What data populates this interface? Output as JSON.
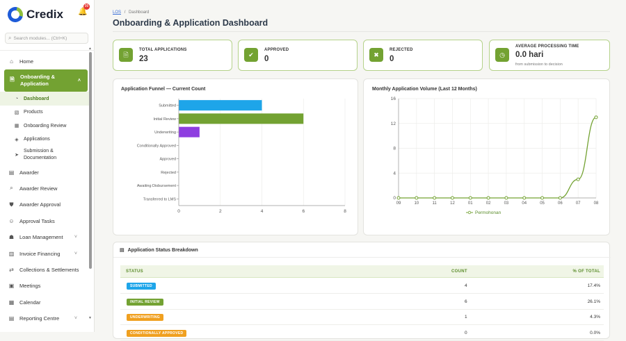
{
  "app": {
    "name": "Credix",
    "notification_count": "99"
  },
  "search": {
    "placeholder": "Search modules... (Ctrl+K)"
  },
  "sidebar": {
    "items": [
      {
        "label": "Home",
        "icon": "home-icon"
      },
      {
        "label": "Onboarding & Application",
        "icon": "document-icon",
        "active": true
      },
      {
        "label": "Awarder",
        "icon": "clipboard-icon"
      },
      {
        "label": "Awarder Review",
        "icon": "search-icon"
      },
      {
        "label": "Awarder Approval",
        "icon": "check-shield-icon"
      },
      {
        "label": "Approval Tasks",
        "icon": "user-check-icon"
      },
      {
        "label": "Loan Management",
        "icon": "bank-icon"
      },
      {
        "label": "Invoice Financing",
        "icon": "invoice-icon"
      },
      {
        "label": "Collections & Settlements",
        "icon": "exchange-icon"
      },
      {
        "label": "Meetings",
        "icon": "meetings-icon"
      },
      {
        "label": "Calendar",
        "icon": "calendar-icon"
      },
      {
        "label": "Reporting Centre",
        "icon": "report-icon"
      }
    ],
    "subitems": [
      {
        "label": "Dashboard",
        "icon": "dashboard-icon",
        "active": true
      },
      {
        "label": "Products",
        "icon": "box-icon"
      },
      {
        "label": "Onboarding Review",
        "icon": "building-icon"
      },
      {
        "label": "Applications",
        "icon": "layers-icon"
      },
      {
        "label": "Submission & Documentation",
        "icon": "send-icon"
      }
    ]
  },
  "breadcrumb": {
    "root": "LOS",
    "separator": "/",
    "current": "Dashboard"
  },
  "page": {
    "title": "Onboarding & Application Dashboard"
  },
  "stats": [
    {
      "label": "TOTAL APPLICATIONS",
      "value": "23",
      "icon": "file-icon"
    },
    {
      "label": "APPROVED",
      "value": "0",
      "icon": "check-circle-icon"
    },
    {
      "label": "REJECTED",
      "value": "0",
      "icon": "x-circle-icon"
    },
    {
      "label": "AVERAGE PROCESSING TIME",
      "value": "0.0 hari",
      "sub": "from submission to decision",
      "icon": "clock-icon"
    }
  ],
  "funnel": {
    "title": "Application Funnel — Current Count",
    "chart_data": {
      "type": "bar",
      "orientation": "horizontal",
      "categories": [
        "Submitted",
        "Initial Review",
        "Underwriting",
        "Conditionally Approved",
        "Approved",
        "Rejected",
        "Awaiting Disbursement",
        "Transferred to LMS"
      ],
      "values": [
        4,
        6,
        1,
        0,
        0,
        0,
        0,
        0
      ],
      "colors": [
        "#1ea5e9",
        "#73a232",
        "#8e3ee0",
        "#888888",
        "#888888",
        "#888888",
        "#888888",
        "#888888"
      ],
      "xlim": [
        0,
        8
      ],
      "xticks": [
        0,
        2,
        4,
        6,
        8
      ],
      "grid": true
    }
  },
  "volume": {
    "title": "Monthly Application Volume (Last 12 Months)",
    "chart_data": {
      "type": "line",
      "x": [
        "09",
        "10",
        "11",
        "12",
        "01",
        "02",
        "03",
        "04",
        "05",
        "06",
        "07",
        "08"
      ],
      "series": [
        {
          "name": "Permohonan",
          "values": [
            0,
            0,
            0,
            0,
            0,
            0,
            0,
            0,
            0,
            0,
            3,
            13
          ],
          "color": "#73a232"
        }
      ],
      "ylim": [
        0,
        16
      ],
      "yticks": [
        0,
        4,
        8,
        12,
        16
      ],
      "grid": true,
      "legend": "bottom"
    }
  },
  "breakdown": {
    "title": "Application Status Breakdown",
    "icon": "table-icon",
    "headers": {
      "status": "STATUS",
      "count": "COUNT",
      "pct": "% OF TOTAL"
    },
    "rows": [
      {
        "status": "SUBMITTED",
        "count": "4",
        "pct": "17.4%",
        "color": "#1ea5e9"
      },
      {
        "status": "INITIAL REVIEW",
        "count": "6",
        "pct": "26.1%",
        "color": "#73a232"
      },
      {
        "status": "UNDERWRITING",
        "count": "1",
        "pct": "4.3%",
        "color": "#f0a020"
      },
      {
        "status": "CONDITIONALLY APPROVED",
        "count": "0",
        "pct": "0.0%",
        "color": "#f0a020"
      }
    ]
  }
}
